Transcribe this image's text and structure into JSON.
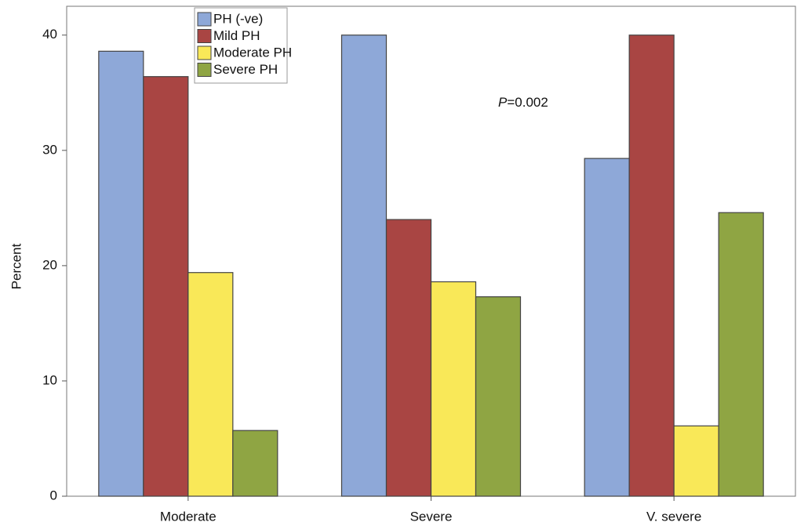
{
  "chart_data": {
    "type": "bar",
    "y_label": "Percent",
    "categories": [
      "Moderate",
      "Severe",
      "V. severe"
    ],
    "series": [
      {
        "name": "PH (-ve)",
        "color": "#8ea8d8",
        "values": [
          38.6,
          40.0,
          29.3
        ]
      },
      {
        "name": "Mild PH",
        "color": "#a94543",
        "values": [
          36.4,
          24.0,
          40.0
        ]
      },
      {
        "name": "Moderate PH",
        "color": "#f9e858",
        "values": [
          19.4,
          18.6,
          6.1
        ]
      },
      {
        "name": "Severe PH",
        "color": "#8fa543",
        "values": [
          5.7,
          17.3,
          24.6
        ]
      }
    ],
    "annotation": "P=0.002",
    "ylim": [
      0,
      42.5
    ],
    "yticks": [
      0,
      10,
      20,
      30,
      40
    ],
    "legend": "upper-left"
  }
}
